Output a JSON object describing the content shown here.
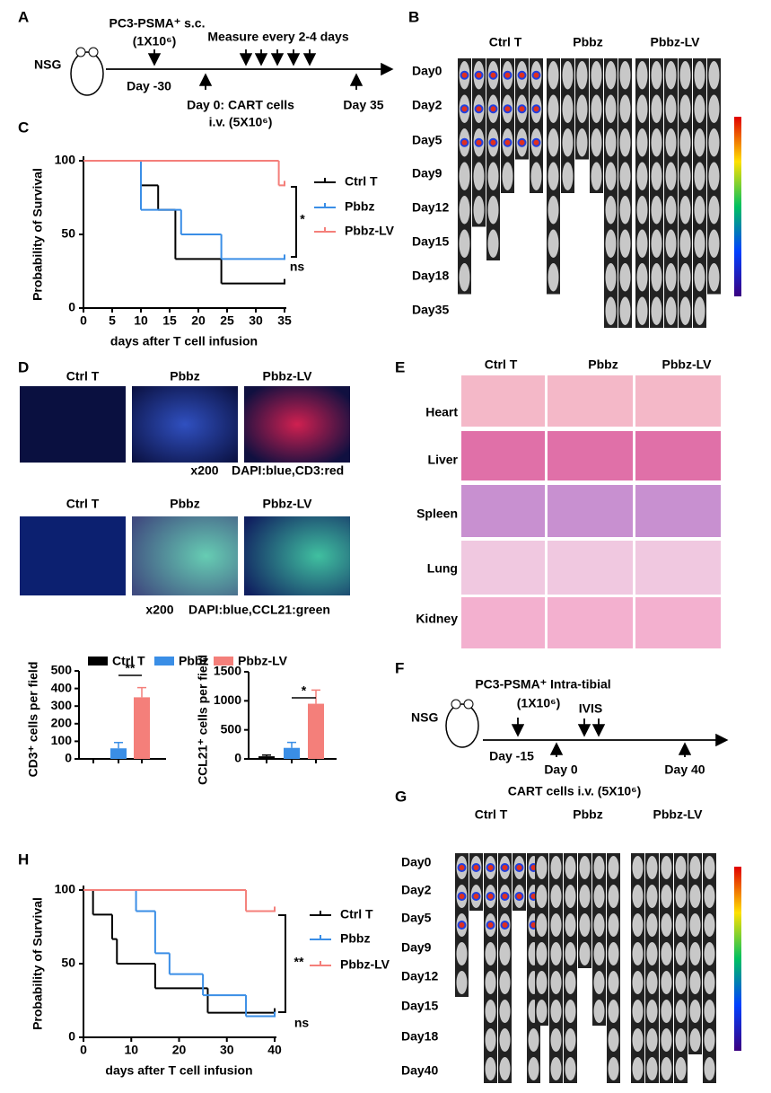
{
  "panels": {
    "A": {
      "letter": "A",
      "host": "NSG",
      "inoculation": "PC3-PSMA⁺ s.c.",
      "dose": "(1X10⁶)",
      "measure": "Measure every 2-4 days",
      "start": "Day -30",
      "treatment": "Day 0: CART cells",
      "treatment_dose": "i.v. (5X10⁶)",
      "end": "Day 35"
    },
    "B": {
      "letter": "B",
      "groups": [
        "Ctrl T",
        "Pbbz",
        "Pbbz-LV"
      ],
      "days": [
        "Day0",
        "Day2",
        "Day5",
        "Day9",
        "Day12",
        "Day15",
        "Day18",
        "Day35"
      ]
    },
    "C": {
      "letter": "C"
    },
    "D": {
      "letter": "D",
      "groups_top": [
        "Ctrl T",
        "Pbbz",
        "Pbbz-LV"
      ],
      "caption_top": [
        "x200",
        "DAPI:blue,CD3:red"
      ],
      "groups_bottom": [
        "Ctrl T",
        "Pbbz",
        "Pbbz-LV"
      ],
      "caption_bottom": [
        "x200",
        "DAPI:blue,CCL21:green"
      ]
    },
    "E": {
      "letter": "E",
      "groups": [
        "Ctrl T",
        "Pbbz",
        "Pbbz-LV"
      ],
      "organs": [
        "Heart",
        "Liver",
        "Spleen",
        "Lung",
        "Kidney"
      ]
    },
    "F": {
      "letter": "F",
      "host": "NSG",
      "inoculation": "PC3-PSMA⁺ Intra-tibial",
      "dose": "(1X10⁶)",
      "imaging": "IVIS",
      "start": "Day -15",
      "treatment": "Day 0",
      "end": "Day 40",
      "treatment_detail": "CART cells i.v. (5X10⁶)"
    },
    "G": {
      "letter": "G",
      "groups": [
        "Ctrl T",
        "Pbbz",
        "Pbbz-LV"
      ],
      "days": [
        "Day0",
        "Day2",
        "Day5",
        "Day9",
        "Day12",
        "Day15",
        "Day18",
        "Day40"
      ]
    },
    "H": {
      "letter": "H"
    }
  },
  "chart_data": [
    {
      "type": "survival",
      "xlabel": "days after T cell infusion",
      "ylabel": "Probability of Survival",
      "xlim": [
        0,
        35
      ],
      "xticks": [
        0,
        5,
        10,
        15,
        20,
        25,
        30,
        35
      ],
      "ylim": [
        0,
        100
      ],
      "yticks": [
        0,
        50,
        100
      ],
      "series": [
        {
          "name": "Ctrl T",
          "color": "#000000",
          "x": [
            0,
            10,
            13,
            16,
            24,
            35
          ],
          "values": [
            100,
            83.3,
            66.7,
            33.3,
            16.7,
            16.7
          ]
        },
        {
          "name": "Pbbz",
          "color": "#3a8ee6",
          "x": [
            0,
            10,
            17,
            24,
            35
          ],
          "values": [
            100,
            66.7,
            50,
            33.3,
            33.3
          ]
        },
        {
          "name": "Pbbz-LV",
          "color": "#f47f7a",
          "x": [
            0,
            34,
            35
          ],
          "values": [
            100,
            83.3,
            83.3
          ]
        }
      ],
      "annotations": [
        "*",
        "ns"
      ]
    },
    {
      "type": "bar",
      "ylabel": "CD3⁺ cells per field",
      "categories": [
        "Ctrl T",
        "Pbbz",
        "Pbbz-LV"
      ],
      "colors": [
        "#000000",
        "#3a8ee6",
        "#f47f7a"
      ],
      "values": [
        0,
        60,
        350
      ],
      "errors": [
        0,
        33,
        55
      ],
      "ylim": [
        0,
        500
      ],
      "yticks": [
        0,
        100,
        200,
        300,
        400,
        500
      ],
      "annotation": "**"
    },
    {
      "type": "bar",
      "ylabel": "CCL21⁺ cells per field",
      "colors": [
        "#000000",
        "#3a8ee6",
        "#f47f7a"
      ],
      "values": [
        45,
        190,
        950
      ],
      "errors": [
        20,
        95,
        235
      ],
      "ylim": [
        0,
        1500
      ],
      "yticks": [
        0,
        500,
        1000,
        1500
      ],
      "annotation": "*"
    },
    {
      "type": "survival",
      "xlabel": "days after T cell infusion",
      "ylabel": "Probability of Survival",
      "xlim": [
        0,
        40
      ],
      "xticks": [
        0,
        10,
        20,
        30,
        40
      ],
      "ylim": [
        0,
        100
      ],
      "yticks": [
        0,
        50,
        100
      ],
      "series": [
        {
          "name": "Ctrl T",
          "color": "#000000",
          "x": [
            0,
            2,
            6,
            7,
            15,
            26,
            40
          ],
          "values": [
            100,
            83.3,
            66.7,
            50,
            33.3,
            16.7,
            16.7
          ]
        },
        {
          "name": "Pbbz",
          "color": "#3a8ee6",
          "x": [
            0,
            11,
            15,
            18,
            25,
            34,
            40
          ],
          "values": [
            100,
            85.7,
            57.1,
            42.9,
            28.6,
            14.3,
            14.3
          ]
        },
        {
          "name": "Pbbz-LV",
          "color": "#f47f7a",
          "x": [
            0,
            34,
            40
          ],
          "values": [
            100,
            85.7,
            85.7
          ]
        }
      ],
      "annotations": [
        "**",
        "ns"
      ]
    }
  ]
}
